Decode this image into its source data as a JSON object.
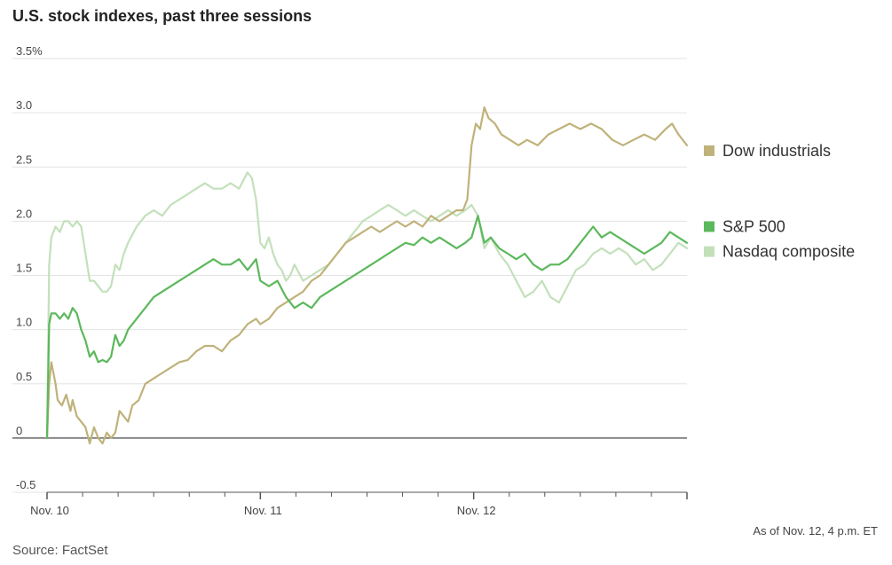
{
  "title": "U.S. stock indexes, past three sessions",
  "note": "As of Nov. 12, 4 p.m. ET",
  "source": "Source: FactSet",
  "chart_data": {
    "type": "line",
    "title": "U.S. stock indexes, past three sessions",
    "xlabel": "",
    "ylabel": "",
    "ylim": [
      -0.5,
      3.5
    ],
    "xlim": [
      0,
      3
    ],
    "y_ticks": [
      {
        "value": 3.5,
        "label": "3.5%"
      },
      {
        "value": 3.0,
        "label": "3.0"
      },
      {
        "value": 2.5,
        "label": "2.5"
      },
      {
        "value": 2.0,
        "label": "2.0"
      },
      {
        "value": 1.5,
        "label": "1.5"
      },
      {
        "value": 1.0,
        "label": "1.0"
      },
      {
        "value": 0.5,
        "label": "0.5"
      },
      {
        "value": 0,
        "label": "0"
      },
      {
        "value": -0.5,
        "label": "-0.5"
      }
    ],
    "x_ticks": [
      {
        "value": 0,
        "label": "Nov. 10"
      },
      {
        "value": 1,
        "label": "Nov. 11"
      },
      {
        "value": 2,
        "label": "Nov. 12"
      }
    ],
    "grid": true,
    "legend_position": "right",
    "series": [
      {
        "name": "Dow industrials",
        "color": "#bfb27a",
        "legend_y": 2.65,
        "x": [
          0,
          0.01,
          0.02,
          0.04,
          0.05,
          0.07,
          0.09,
          0.11,
          0.12,
          0.14,
          0.16,
          0.18,
          0.2,
          0.22,
          0.24,
          0.26,
          0.28,
          0.3,
          0.32,
          0.34,
          0.36,
          0.38,
          0.4,
          0.43,
          0.46,
          0.5,
          0.54,
          0.58,
          0.62,
          0.66,
          0.7,
          0.74,
          0.78,
          0.82,
          0.86,
          0.9,
          0.94,
          0.98,
          1.0,
          1.04,
          1.08,
          1.12,
          1.16,
          1.2,
          1.24,
          1.28,
          1.32,
          1.36,
          1.4,
          1.44,
          1.48,
          1.52,
          1.56,
          1.6,
          1.64,
          1.68,
          1.72,
          1.76,
          1.8,
          1.84,
          1.88,
          1.92,
          1.95,
          1.97,
          1.99,
          2.0,
          2.01,
          2.03,
          2.05,
          2.07,
          2.1,
          2.13,
          2.17,
          2.21,
          2.25,
          2.3,
          2.35,
          2.4,
          2.45,
          2.5,
          2.55,
          2.6,
          2.65,
          2.7,
          2.75,
          2.8,
          2.85,
          2.9,
          2.93,
          2.96,
          2.98,
          3.0
        ],
        "y": [
          0.0,
          0.5,
          0.7,
          0.5,
          0.35,
          0.3,
          0.4,
          0.25,
          0.35,
          0.2,
          0.15,
          0.1,
          -0.05,
          0.1,
          0.0,
          -0.05,
          0.05,
          0.0,
          0.05,
          0.25,
          0.2,
          0.15,
          0.3,
          0.35,
          0.5,
          0.55,
          0.6,
          0.65,
          0.7,
          0.72,
          0.8,
          0.85,
          0.85,
          0.8,
          0.9,
          0.95,
          1.05,
          1.1,
          1.05,
          1.1,
          1.2,
          1.25,
          1.3,
          1.35,
          1.45,
          1.5,
          1.6,
          1.7,
          1.8,
          1.85,
          1.9,
          1.95,
          1.9,
          1.95,
          2.0,
          1.95,
          2.0,
          1.95,
          2.05,
          2.0,
          2.05,
          2.1,
          2.1,
          2.2,
          2.7,
          2.8,
          2.9,
          2.85,
          3.05,
          2.95,
          2.9,
          2.8,
          2.75,
          2.7,
          2.75,
          2.7,
          2.8,
          2.85,
          2.9,
          2.85,
          2.9,
          2.85,
          2.75,
          2.7,
          2.75,
          2.8,
          2.75,
          2.85,
          2.9,
          2.8,
          2.75,
          2.7
        ]
      },
      {
        "name": "S&P 500",
        "color": "#5cb85c",
        "legend_y": 1.95,
        "x": [
          0,
          0.01,
          0.02,
          0.04,
          0.06,
          0.08,
          0.1,
          0.12,
          0.14,
          0.16,
          0.18,
          0.2,
          0.22,
          0.24,
          0.26,
          0.28,
          0.3,
          0.32,
          0.34,
          0.36,
          0.38,
          0.42,
          0.46,
          0.5,
          0.54,
          0.58,
          0.62,
          0.66,
          0.7,
          0.74,
          0.78,
          0.82,
          0.86,
          0.9,
          0.94,
          0.98,
          1.0,
          1.04,
          1.08,
          1.12,
          1.16,
          1.2,
          1.24,
          1.28,
          1.32,
          1.36,
          1.4,
          1.44,
          1.48,
          1.52,
          1.56,
          1.6,
          1.64,
          1.68,
          1.72,
          1.76,
          1.8,
          1.84,
          1.88,
          1.92,
          1.96,
          1.99,
          2.02,
          2.05,
          2.08,
          2.12,
          2.16,
          2.2,
          2.24,
          2.28,
          2.32,
          2.36,
          2.4,
          2.44,
          2.48,
          2.52,
          2.56,
          2.6,
          2.64,
          2.68,
          2.72,
          2.76,
          2.8,
          2.84,
          2.88,
          2.92,
          2.96,
          3.0
        ],
        "y": [
          0.0,
          1.05,
          1.15,
          1.15,
          1.1,
          1.15,
          1.1,
          1.2,
          1.15,
          1.0,
          0.9,
          0.75,
          0.8,
          0.7,
          0.72,
          0.7,
          0.75,
          0.95,
          0.85,
          0.9,
          1.0,
          1.1,
          1.2,
          1.3,
          1.35,
          1.4,
          1.45,
          1.5,
          1.55,
          1.6,
          1.65,
          1.6,
          1.6,
          1.65,
          1.55,
          1.65,
          1.45,
          1.4,
          1.45,
          1.3,
          1.2,
          1.25,
          1.2,
          1.3,
          1.35,
          1.4,
          1.45,
          1.5,
          1.55,
          1.6,
          1.65,
          1.7,
          1.75,
          1.8,
          1.78,
          1.85,
          1.8,
          1.85,
          1.8,
          1.75,
          1.8,
          1.85,
          2.05,
          1.8,
          1.85,
          1.75,
          1.7,
          1.65,
          1.7,
          1.6,
          1.55,
          1.6,
          1.6,
          1.65,
          1.75,
          1.85,
          1.95,
          1.85,
          1.9,
          1.85,
          1.8,
          1.75,
          1.7,
          1.75,
          1.8,
          1.9,
          1.85,
          1.8
        ]
      },
      {
        "name": "Nasdaq composite",
        "color": "#c3e0bb",
        "legend_y": 1.72,
        "x": [
          0,
          0.01,
          0.02,
          0.04,
          0.06,
          0.08,
          0.1,
          0.12,
          0.14,
          0.16,
          0.18,
          0.2,
          0.22,
          0.24,
          0.26,
          0.28,
          0.3,
          0.32,
          0.34,
          0.36,
          0.38,
          0.42,
          0.46,
          0.5,
          0.54,
          0.58,
          0.62,
          0.66,
          0.7,
          0.74,
          0.78,
          0.82,
          0.86,
          0.9,
          0.94,
          0.96,
          0.98,
          1.0,
          1.02,
          1.04,
          1.06,
          1.08,
          1.1,
          1.12,
          1.14,
          1.16,
          1.2,
          1.24,
          1.28,
          1.32,
          1.36,
          1.4,
          1.44,
          1.48,
          1.52,
          1.56,
          1.6,
          1.64,
          1.68,
          1.72,
          1.76,
          1.8,
          1.84,
          1.88,
          1.92,
          1.96,
          1.99,
          2.02,
          2.05,
          2.08,
          2.12,
          2.16,
          2.2,
          2.24,
          2.28,
          2.32,
          2.36,
          2.4,
          2.44,
          2.48,
          2.52,
          2.56,
          2.6,
          2.64,
          2.68,
          2.72,
          2.76,
          2.8,
          2.84,
          2.88,
          2.92,
          2.96,
          3.0
        ],
        "y": [
          0.0,
          1.6,
          1.85,
          1.95,
          1.9,
          2.0,
          2.0,
          1.95,
          2.0,
          1.95,
          1.7,
          1.45,
          1.45,
          1.4,
          1.35,
          1.35,
          1.4,
          1.6,
          1.55,
          1.7,
          1.8,
          1.95,
          2.05,
          2.1,
          2.05,
          2.15,
          2.2,
          2.25,
          2.3,
          2.35,
          2.3,
          2.3,
          2.35,
          2.3,
          2.45,
          2.4,
          2.2,
          1.8,
          1.75,
          1.85,
          1.7,
          1.6,
          1.55,
          1.45,
          1.5,
          1.6,
          1.45,
          1.5,
          1.55,
          1.6,
          1.7,
          1.8,
          1.9,
          2.0,
          2.05,
          2.1,
          2.15,
          2.1,
          2.05,
          2.1,
          2.05,
          2.0,
          2.05,
          2.1,
          2.05,
          2.1,
          2.15,
          2.05,
          1.75,
          1.85,
          1.7,
          1.6,
          1.45,
          1.3,
          1.35,
          1.45,
          1.3,
          1.25,
          1.4,
          1.55,
          1.6,
          1.7,
          1.75,
          1.7,
          1.75,
          1.7,
          1.6,
          1.65,
          1.55,
          1.6,
          1.7,
          1.8,
          1.75
        ]
      }
    ]
  }
}
